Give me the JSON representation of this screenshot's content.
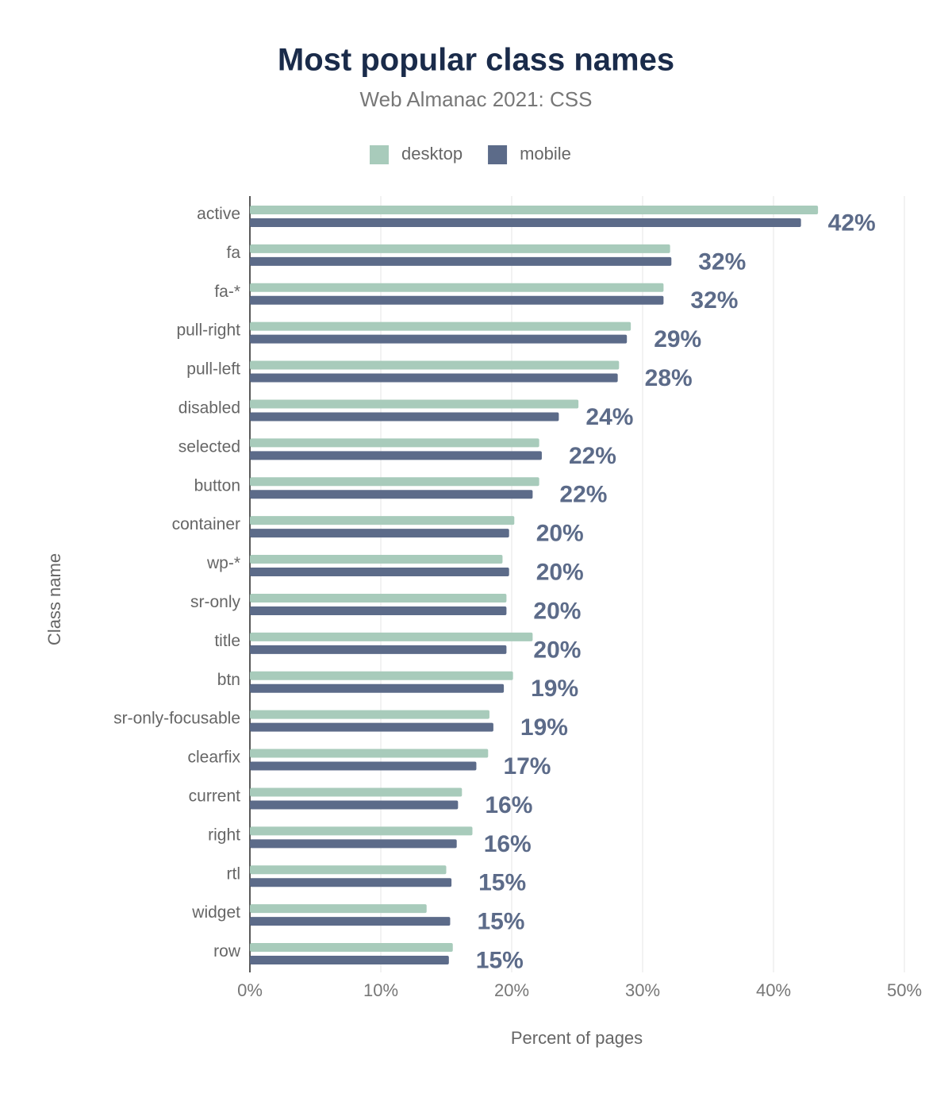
{
  "chart_data": {
    "type": "bar",
    "orientation": "horizontal",
    "title": "Most popular class names",
    "subtitle": "Web Almanac 2021: CSS",
    "x_label": "Percent of pages",
    "y_label": "Class name",
    "categories": [
      "active",
      "fa",
      "fa-*",
      "pull-right",
      "pull-left",
      "disabled",
      "selected",
      "button",
      "container",
      "wp-*",
      "sr-only",
      "title",
      "btn",
      "sr-only-focusable",
      "clearfix",
      "current",
      "right",
      "rtl",
      "widget",
      "row"
    ],
    "series": [
      {
        "name": "desktop",
        "color": "#a8cbbb",
        "values": [
          43.4,
          32.1,
          31.6,
          29.1,
          28.2,
          25.1,
          22.1,
          22.1,
          20.2,
          19.3,
          19.6,
          21.6,
          20.1,
          18.3,
          18.2,
          16.2,
          17.0,
          15.0,
          13.5,
          15.5
        ]
      },
      {
        "name": "mobile",
        "color": "#5c6b89",
        "values": [
          42.1,
          32.2,
          31.6,
          28.8,
          28.1,
          23.6,
          22.3,
          21.6,
          19.8,
          19.8,
          19.6,
          19.6,
          19.4,
          18.6,
          17.3,
          15.9,
          15.8,
          15.4,
          15.3,
          15.2
        ],
        "value_labels": [
          "42%",
          "32%",
          "32%",
          "29%",
          "28%",
          "24%",
          "22%",
          "22%",
          "20%",
          "20%",
          "20%",
          "20%",
          "19%",
          "19%",
          "17%",
          "16%",
          "16%",
          "15%",
          "15%",
          "15%"
        ]
      }
    ],
    "xlim": [
      0,
      50
    ],
    "xticks": [
      {
        "value": 0,
        "label": "0%"
      },
      {
        "value": 10,
        "label": "10%"
      },
      {
        "value": 20,
        "label": "20%"
      },
      {
        "value": 30,
        "label": "30%"
      },
      {
        "value": 40,
        "label": "40%"
      },
      {
        "value": 50,
        "label": "50%"
      }
    ],
    "grid": true,
    "legend": "top"
  }
}
